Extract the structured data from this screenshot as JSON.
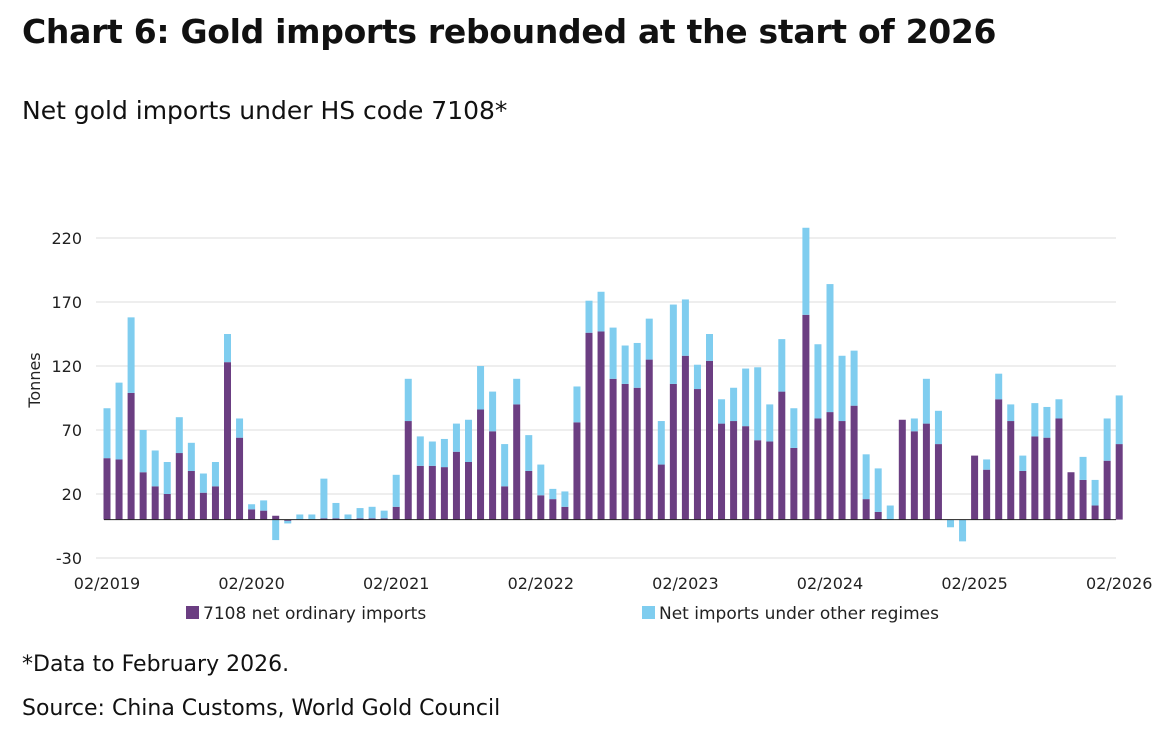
{
  "header": {
    "title": "Chart 6: Gold imports rebounded at the start of 2026",
    "subtitle": "Net gold imports under HS code 7108*"
  },
  "footer": {
    "footnote": "*Data to February 2026.",
    "source": "Source: China Customs, World Gold Council"
  },
  "colors": {
    "ordinary": "#6b3e82",
    "other": "#7fcdef",
    "grid": "#dcdcdc",
    "zero_line": "#222222"
  },
  "chart_data": {
    "type": "bar",
    "stacked": true,
    "title": "Net gold imports under HS code 7108*",
    "ylabel": "Tonnes",
    "ylim": [
      -30,
      230
    ],
    "yticks": [
      220,
      170,
      120,
      70,
      20,
      -30
    ],
    "xtick_labels": [
      "02/2019",
      "02/2020",
      "02/2021",
      "02/2022",
      "02/2023",
      "02/2024",
      "02/2025",
      "02/2026"
    ],
    "xtick_months": [
      "2019-02",
      "2020-02",
      "2021-02",
      "2022-02",
      "2023-02",
      "2024-02",
      "2025-02",
      "2026-02"
    ],
    "categories": [
      "2019-02",
      "2019-03",
      "2019-04",
      "2019-05",
      "2019-06",
      "2019-07",
      "2019-08",
      "2019-09",
      "2019-10",
      "2019-11",
      "2019-12",
      "2020-01",
      "2020-02",
      "2020-03",
      "2020-04",
      "2020-05",
      "2020-06",
      "2020-07",
      "2020-08",
      "2020-09",
      "2020-10",
      "2020-11",
      "2020-12",
      "2021-01",
      "2021-02",
      "2021-03",
      "2021-04",
      "2021-05",
      "2021-06",
      "2021-07",
      "2021-08",
      "2021-09",
      "2021-10",
      "2021-11",
      "2021-12",
      "2022-01",
      "2022-02",
      "2022-03",
      "2022-04",
      "2022-05",
      "2022-06",
      "2022-07",
      "2022-08",
      "2022-09",
      "2022-10",
      "2022-11",
      "2022-12",
      "2023-01",
      "2023-02",
      "2023-03",
      "2023-04",
      "2023-05",
      "2023-06",
      "2023-07",
      "2023-08",
      "2023-09",
      "2023-10",
      "2023-11",
      "2023-12",
      "2024-01",
      "2024-02",
      "2024-03",
      "2024-04",
      "2024-05",
      "2024-06",
      "2024-07",
      "2024-08",
      "2024-09",
      "2024-10",
      "2024-11",
      "2024-12",
      "2025-01",
      "2025-02",
      "2025-03",
      "2025-04",
      "2025-05",
      "2025-06",
      "2025-07",
      "2025-08",
      "2025-09",
      "2025-10",
      "2025-11",
      "2025-12",
      "2026-01",
      "2026-02"
    ],
    "series": [
      {
        "name": "7108 net ordinary imports",
        "values": [
          48,
          47,
          99,
          37,
          26,
          20,
          52,
          38,
          21,
          26,
          123,
          64,
          8,
          7,
          3,
          -1,
          0,
          0,
          1,
          1,
          0,
          1,
          1,
          1,
          10,
          77,
          42,
          42,
          41,
          53,
          45,
          86,
          69,
          26,
          90,
          38,
          19,
          16,
          10,
          76,
          146,
          147,
          110,
          106,
          103,
          125,
          43,
          106,
          128,
          102,
          124,
          75,
          77,
          73,
          62,
          61,
          100,
          56,
          160,
          79,
          84,
          77,
          89,
          16,
          6,
          0,
          78,
          69,
          75,
          59,
          0,
          0,
          50,
          39,
          94,
          77,
          38,
          65,
          64,
          79,
          37,
          31,
          11,
          46,
          59
        ],
        "color": "#6b3e82"
      },
      {
        "name": "Net imports under other regimes",
        "values": [
          39,
          60,
          59,
          33,
          28,
          25,
          28,
          22,
          15,
          19,
          22,
          15,
          4,
          8,
          -16,
          -2,
          4,
          4,
          31,
          12,
          4,
          8,
          9,
          6,
          25,
          33,
          23,
          19,
          22,
          22,
          33,
          34,
          31,
          33,
          20,
          28,
          24,
          8,
          12,
          28,
          25,
          31,
          40,
          30,
          35,
          32,
          34,
          62,
          44,
          19,
          21,
          19,
          26,
          45,
          57,
          29,
          41,
          31,
          68,
          58,
          100,
          51,
          43,
          35,
          34,
          11,
          0,
          10,
          35,
          26,
          -6,
          -17,
          0,
          8,
          20,
          13,
          12,
          26,
          24,
          15,
          0,
          18,
          20,
          33,
          38
        ]
      }
    ]
  }
}
